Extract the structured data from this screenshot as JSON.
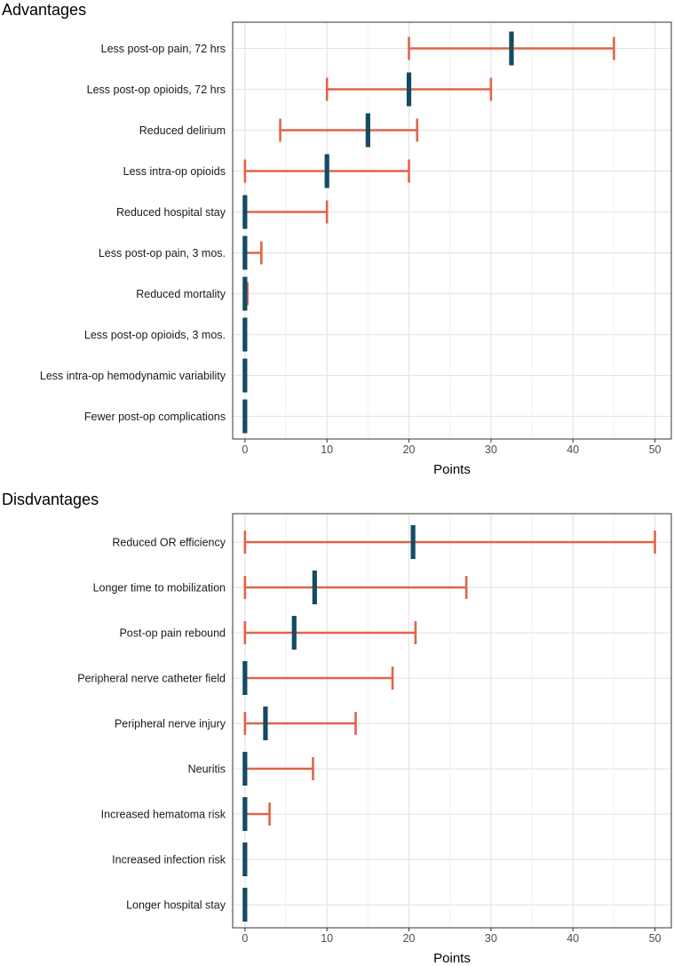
{
  "chart_data": [
    {
      "type": "errorbar-dot",
      "title": "Advantages",
      "xlabel": "Points",
      "ylabel": "",
      "xlim": [
        -1.5,
        52
      ],
      "xticks": [
        0,
        10,
        20,
        30,
        40,
        50
      ],
      "grid": true,
      "colors": {
        "interval": "#e0644a",
        "point": "#134b63",
        "grid": "#e6e6e6",
        "frame": "#333333"
      },
      "items": [
        {
          "label": "Less post-op pain, 72 hrs",
          "low": 20,
          "high": 45,
          "point": 32.5
        },
        {
          "label": "Less post-op opioids, 72 hrs",
          "low": 10,
          "high": 30,
          "point": 20
        },
        {
          "label": "Reduced delirium",
          "low": 4.3,
          "high": 21,
          "point": 15
        },
        {
          "label": "Less intra-op opioids",
          "low": 0,
          "high": 20,
          "point": 10
        },
        {
          "label": "Reduced hospital stay",
          "low": 0,
          "high": 10,
          "point": 0
        },
        {
          "label": "Less post-op pain, 3 mos.",
          "low": 0,
          "high": 2,
          "point": 0
        },
        {
          "label": "Reduced mortality",
          "low": 0,
          "high": 0.3,
          "point": 0
        },
        {
          "label": "Less post-op opioids, 3 mos.",
          "low": 0,
          "high": 0,
          "point": 0
        },
        {
          "label": "Less intra-op hemodynamic variability",
          "low": 0,
          "high": 0,
          "point": 0
        },
        {
          "label": "Fewer post-op complications",
          "low": 0,
          "high": 0,
          "point": 0
        }
      ]
    },
    {
      "type": "errorbar-dot",
      "title": "Disdvantages",
      "xlabel": "Points",
      "ylabel": "",
      "xlim": [
        -1.5,
        52
      ],
      "xticks": [
        0,
        10,
        20,
        30,
        40,
        50
      ],
      "grid": true,
      "colors": {
        "interval": "#e0644a",
        "point": "#134b63",
        "grid": "#e6e6e6",
        "frame": "#333333"
      },
      "items": [
        {
          "label": "Reduced OR efficiency",
          "low": 0,
          "high": 50,
          "point": 20.5
        },
        {
          "label": "Longer time to mobilization",
          "low": 0,
          "high": 27,
          "point": 8.5
        },
        {
          "label": "Post-op pain rebound",
          "low": 0,
          "high": 20.8,
          "point": 6
        },
        {
          "label": "Peripheral nerve catheter field",
          "low": 0,
          "high": 18,
          "point": 0
        },
        {
          "label": "Peripheral nerve injury",
          "low": 0,
          "high": 13.5,
          "point": 2.5
        },
        {
          "label": "Neuritis",
          "low": 0,
          "high": 8.3,
          "point": 0
        },
        {
          "label": "Increased hematoma risk",
          "low": 0,
          "high": 3,
          "point": 0
        },
        {
          "label": "Increased infection risk",
          "low": 0,
          "high": 0,
          "point": 0
        },
        {
          "label": "Longer hospital stay",
          "low": 0,
          "high": 0,
          "point": 0
        }
      ]
    }
  ]
}
